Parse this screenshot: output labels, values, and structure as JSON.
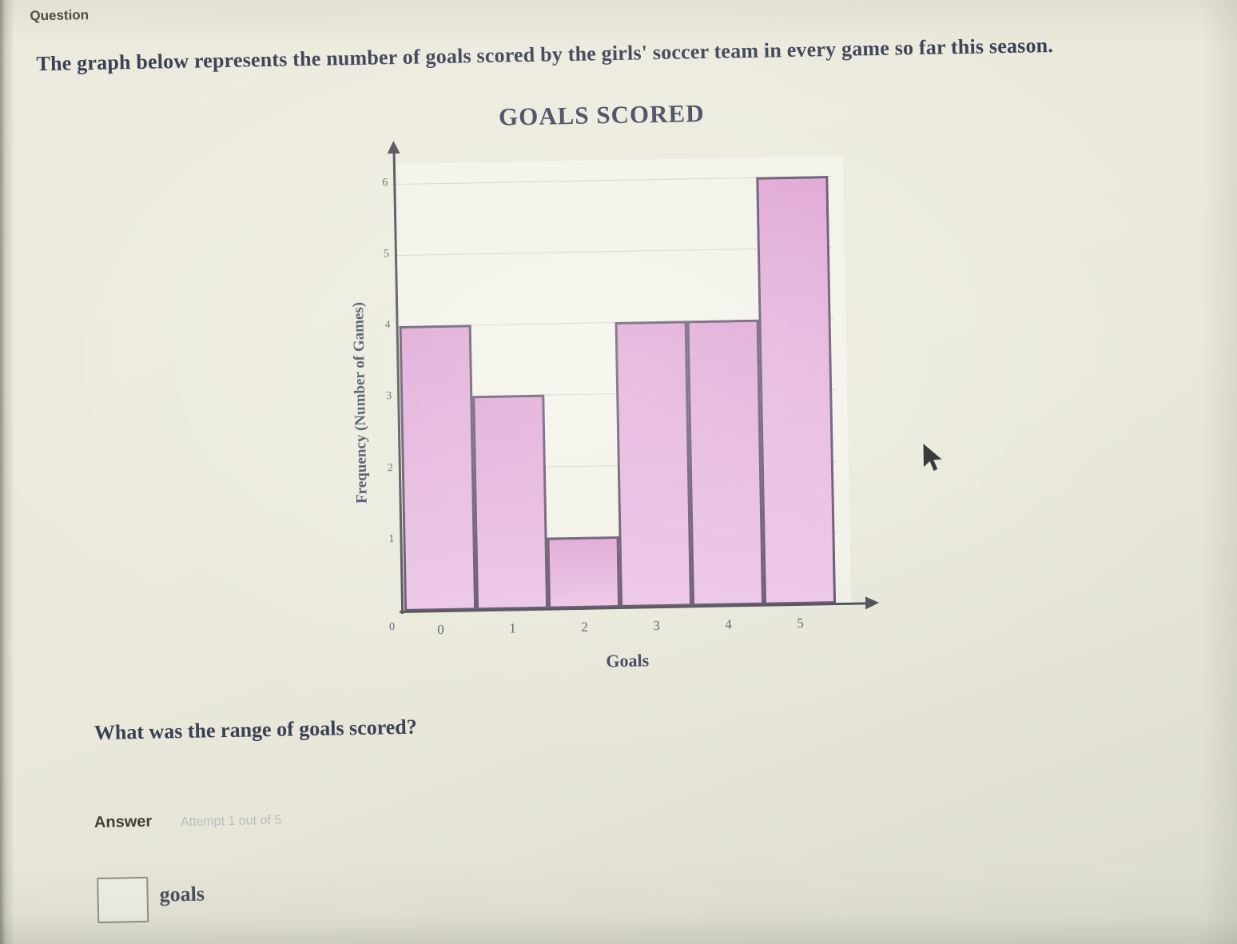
{
  "page": {
    "section_label": "Question",
    "prompt": "The graph below represents the number of goals scored by the girls' soccer team in every game so far this season.",
    "question": "What was the range of goals scored?",
    "answer": {
      "label": "Answer",
      "attempt_text": "Attempt 1 out of 5",
      "input_value": "",
      "unit_label": "goals"
    }
  },
  "chart_data": {
    "type": "bar",
    "title": "GOALS SCORED",
    "xlabel": "Goals",
    "ylabel": "Frequency (Number of Games)",
    "categories": [
      "0",
      "1",
      "2",
      "3",
      "4",
      "5"
    ],
    "values": [
      4,
      3,
      1,
      4,
      4,
      6
    ],
    "ylim": [
      0,
      6
    ],
    "yticks": [
      1,
      2,
      3,
      4,
      5,
      6
    ],
    "origin_label": "0",
    "grid": true,
    "legend": false,
    "colors": {
      "bar_fill_top": "#dd9fd2",
      "bar_fill_bottom": "#eac3e4",
      "bar_border": "#5c4a66",
      "axis": "#46464e",
      "text": "#3b4156"
    }
  },
  "cursor": {
    "icon": "arrow-pointer"
  }
}
